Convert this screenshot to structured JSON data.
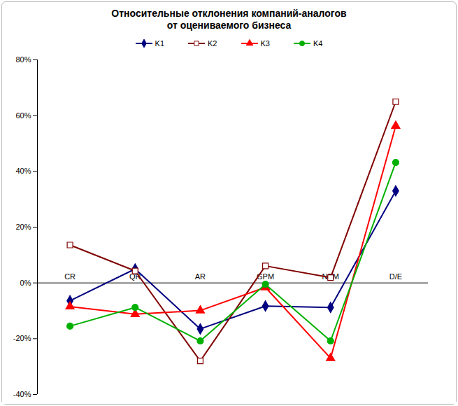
{
  "chart_data": {
    "type": "line",
    "title": "Относительные отклонения компаний-аналогов\nот оцениваемого бизнеса",
    "categories": [
      "CR",
      "QR",
      "AR",
      "GPM",
      "NPM",
      "D/E"
    ],
    "series": [
      {
        "name": "K1",
        "color": "#000080",
        "marker": "diamond",
        "values": [
          -6.4,
          5,
          -16.5,
          -8.3,
          -8.8,
          33
        ]
      },
      {
        "name": "K2",
        "color": "#800000",
        "marker": "square-open",
        "values": [
          13.6,
          4.3,
          -28,
          6.1,
          1.9,
          65
        ]
      },
      {
        "name": "K3",
        "color": "#ff0000",
        "marker": "triangle",
        "values": [
          -8.5,
          -11.2,
          -9.9,
          -1.6,
          -27,
          56.3
        ]
      },
      {
        "name": "K4",
        "color": "#00b000",
        "marker": "circle",
        "values": [
          -15.5,
          -8.8,
          -20.8,
          -0.5,
          -20.8,
          43.2
        ]
      }
    ],
    "ylim": [
      -40,
      80
    ],
    "yticks": [
      {
        "value": -40,
        "label": "-40%"
      },
      {
        "value": -20,
        "label": "-20%"
      },
      {
        "value": 0,
        "label": "0%"
      },
      {
        "value": 20,
        "label": "20%"
      },
      {
        "value": 40,
        "label": "40%"
      },
      {
        "value": 60,
        "label": "60%"
      },
      {
        "value": 80,
        "label": "80%"
      }
    ],
    "grid": false,
    "legend": "top"
  }
}
